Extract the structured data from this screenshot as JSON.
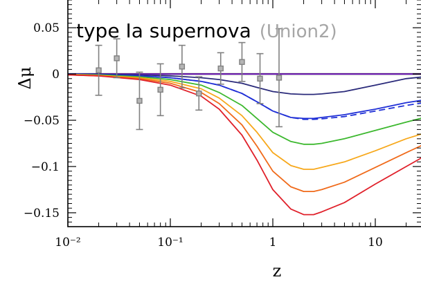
{
  "chart_data": {
    "type": "line",
    "title": "",
    "xlabel": "z",
    "ylabel": "Δμ",
    "xscale": "log",
    "xlim": [
      0.01,
      30
    ],
    "ylim": [
      -0.165,
      0.08
    ],
    "grid": false,
    "x_ticks": [
      {
        "value": 0.01,
        "label": "10⁻²"
      },
      {
        "value": 0.1,
        "label": "10⁻¹"
      },
      {
        "value": 1,
        "label": "1"
      },
      {
        "value": 10,
        "label": "10"
      }
    ],
    "y_ticks": [
      {
        "value": 0.05,
        "label": "0.05"
      },
      {
        "value": 0,
        "label": "0"
      },
      {
        "value": -0.05,
        "label": "−0.05"
      },
      {
        "value": -0.1,
        "label": "−0.1"
      },
      {
        "value": -0.15,
        "label": "−0.15"
      }
    ],
    "annotation": {
      "main": "type Ia supernova",
      "sub": "(Union2)"
    },
    "x": [
      0.01,
      0.02,
      0.05,
      0.1,
      0.2,
      0.3,
      0.5,
      0.7,
      1.0,
      1.5,
      2.0,
      2.5,
      3.0,
      5.0,
      10.0,
      20.0,
      30.0
    ],
    "series": [
      {
        "color": "#000000",
        "style": "solid",
        "values": [
          0,
          0,
          0,
          0,
          0,
          0,
          0,
          0,
          0,
          0,
          0,
          0,
          0,
          0,
          0,
          0,
          0
        ]
      },
      {
        "color": "#7a1fc9",
        "style": "solid",
        "values": [
          0,
          0,
          0,
          0,
          0,
          0,
          0,
          0,
          0,
          0,
          0,
          0,
          0,
          0,
          0,
          0,
          0
        ]
      },
      {
        "color": "#2a2a7a",
        "style": "solid",
        "values": [
          0,
          -0.0003,
          -0.001,
          -0.002,
          -0.004,
          -0.006,
          -0.01,
          -0.0145,
          -0.019,
          -0.0215,
          -0.022,
          -0.022,
          -0.0215,
          -0.019,
          -0.012,
          -0.005,
          -0.003
        ]
      },
      {
        "color": "#1f2fd6",
        "style": "solid",
        "values": [
          0,
          -0.0005,
          -0.002,
          -0.004,
          -0.008,
          -0.012,
          -0.021,
          -0.03,
          -0.04,
          -0.047,
          -0.048,
          -0.048,
          -0.047,
          -0.044,
          -0.038,
          -0.031,
          -0.028
        ]
      },
      {
        "color": "#1f2fd6",
        "style": "dashed",
        "values": [
          0,
          -0.0005,
          -0.002,
          -0.004,
          -0.008,
          -0.012,
          -0.021,
          -0.03,
          -0.04,
          -0.047,
          -0.049,
          -0.049,
          -0.0485,
          -0.046,
          -0.04,
          -0.034,
          -0.031
        ]
      },
      {
        "color": "#3cb82e",
        "style": "solid",
        "values": [
          -0.0005,
          -0.001,
          -0.003,
          -0.006,
          -0.012,
          -0.02,
          -0.034,
          -0.048,
          -0.063,
          -0.073,
          -0.076,
          -0.076,
          -0.075,
          -0.07,
          -0.061,
          -0.052,
          -0.047
        ]
      },
      {
        "color": "#f7a81b",
        "style": "solid",
        "values": [
          -0.0005,
          -0.0015,
          -0.004,
          -0.008,
          -0.016,
          -0.026,
          -0.045,
          -0.063,
          -0.085,
          -0.099,
          -0.103,
          -0.103,
          -0.101,
          -0.095,
          -0.083,
          -0.07,
          -0.064
        ]
      },
      {
        "color": "#f06a1a",
        "style": "solid",
        "values": [
          -0.001,
          -0.002,
          -0.005,
          -0.01,
          -0.02,
          -0.032,
          -0.055,
          -0.078,
          -0.105,
          -0.122,
          -0.127,
          -0.127,
          -0.125,
          -0.117,
          -0.101,
          -0.085,
          -0.076
        ]
      },
      {
        "color": "#e0202a",
        "style": "solid",
        "values": [
          -0.001,
          -0.002,
          -0.006,
          -0.012,
          -0.024,
          -0.038,
          -0.066,
          -0.093,
          -0.125,
          -0.146,
          -0.152,
          -0.152,
          -0.149,
          -0.139,
          -0.119,
          -0.1,
          -0.089
        ]
      }
    ],
    "datapoints": {
      "name": "Union2",
      "color": "#808080",
      "points": [
        {
          "x": 0.02,
          "y": 0.004,
          "err": 0.027
        },
        {
          "x": 0.03,
          "y": 0.017,
          "err": 0.021
        },
        {
          "x": 0.05,
          "y": -0.029,
          "err": 0.031
        },
        {
          "x": 0.08,
          "y": -0.017,
          "err": 0.028
        },
        {
          "x": 0.13,
          "y": 0.008,
          "err": 0.023
        },
        {
          "x": 0.19,
          "y": -0.021,
          "err": 0.018
        },
        {
          "x": 0.31,
          "y": 0.006,
          "err": 0.017
        },
        {
          "x": 0.5,
          "y": 0.013,
          "err": 0.021
        },
        {
          "x": 0.75,
          "y": -0.005,
          "err": 0.027
        },
        {
          "x": 1.15,
          "y": -0.004,
          "err": 0.053
        }
      ]
    }
  }
}
